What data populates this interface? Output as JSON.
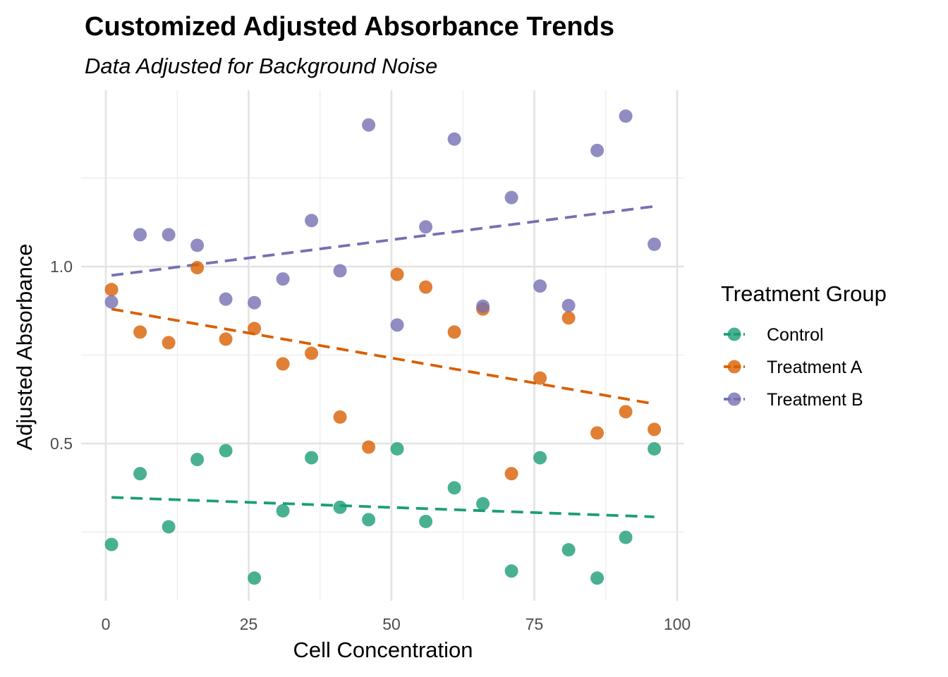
{
  "chart_data": {
    "type": "scatter",
    "title": "Customized Adjusted Absorbance Trends",
    "subtitle": "Data Adjusted for Background Noise",
    "xlabel": "Cell Concentration",
    "ylabel": "Adjusted Absorbance",
    "xlim": [
      -2,
      101
    ],
    "ylim": [
      0.06,
      1.48
    ],
    "x_ticks": [
      0,
      25,
      50,
      75,
      100
    ],
    "x_tick_labels": [
      "0",
      "25",
      "50",
      "75",
      "100"
    ],
    "y_ticks": [
      0.5,
      1.0
    ],
    "y_tick_labels": [
      "0.5",
      "1.0"
    ],
    "grid": true,
    "legend_title": "Treatment Group",
    "legend_position": "right",
    "series": [
      {
        "name": "Control",
        "color": "#1B9E77",
        "x": [
          1,
          6,
          11,
          16,
          21,
          26,
          31,
          36,
          41,
          46,
          51,
          56,
          61,
          66,
          71,
          76,
          81,
          86,
          91,
          96
        ],
        "y": [
          0.215,
          0.415,
          0.265,
          0.455,
          0.48,
          0.12,
          0.31,
          0.46,
          0.32,
          0.285,
          0.485,
          0.28,
          0.375,
          0.33,
          0.14,
          0.46,
          0.2,
          0.12,
          0.235,
          0.485
        ],
        "trend": [
          [
            1,
            0.348
          ],
          [
            96,
            0.293
          ]
        ]
      },
      {
        "name": "Treatment A",
        "color": "#D95F02",
        "x": [
          1,
          6,
          11,
          16,
          21,
          26,
          31,
          36,
          41,
          46,
          51,
          56,
          61,
          66,
          71,
          76,
          81,
          86,
          91,
          96
        ],
        "y": [
          0.935,
          0.815,
          0.785,
          0.997,
          0.795,
          0.825,
          0.725,
          0.755,
          0.575,
          0.49,
          0.978,
          0.942,
          0.815,
          0.88,
          0.415,
          0.685,
          0.855,
          0.53,
          0.59,
          0.54
        ],
        "trend": [
          [
            1,
            0.88
          ],
          [
            96,
            0.612
          ]
        ]
      },
      {
        "name": "Treatment B",
        "color": "#7570B3",
        "x": [
          1,
          6,
          11,
          16,
          21,
          26,
          31,
          36,
          41,
          46,
          51,
          56,
          61,
          66,
          71,
          76,
          81,
          86,
          91,
          96
        ],
        "y": [
          0.9,
          1.09,
          1.09,
          1.06,
          0.908,
          0.898,
          0.965,
          1.13,
          0.988,
          1.4,
          0.835,
          1.112,
          1.36,
          0.888,
          1.195,
          0.945,
          0.89,
          1.328,
          1.425,
          1.063
        ],
        "trend": [
          [
            1,
            0.975
          ],
          [
            96,
            1.17
          ]
        ]
      }
    ]
  }
}
